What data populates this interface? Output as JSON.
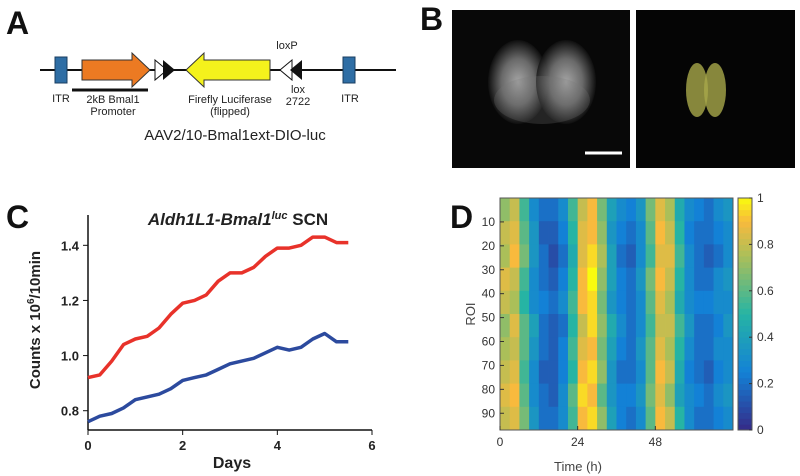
{
  "panels": [
    "A",
    "B",
    "C",
    "D"
  ],
  "diagram": {
    "itr_left": "ITR",
    "promoter": [
      "2kB Bmal1",
      "Promoter"
    ],
    "luciferase": [
      "Firefly Luciferase",
      "(flipped)"
    ],
    "loxp": "loxP",
    "lox2722": [
      "lox",
      "2722"
    ],
    "itr_right": "ITR",
    "construct": "AAV2/10-Bmal1ext-DIO-luc"
  },
  "chart_data": [
    {
      "type": "line",
      "title": [
        "Aldh1L1-Bmal1",
        "luc",
        " SCN"
      ],
      "x_label": "Days",
      "y_label": [
        "Counts x 10",
        "6",
        "/10min"
      ],
      "x": [
        0,
        0.25,
        0.5,
        0.75,
        1,
        1.25,
        1.5,
        1.75,
        2,
        2.25,
        2.5,
        2.75,
        3,
        3.25,
        3.5,
        3.75,
        4,
        4.25,
        4.5,
        4.75,
        5,
        5.25,
        5.5
      ],
      "series": [
        {
          "color": "#e8322a",
          "values": [
            0.92,
            0.93,
            0.98,
            1.04,
            1.06,
            1.07,
            1.1,
            1.15,
            1.19,
            1.2,
            1.22,
            1.27,
            1.3,
            1.3,
            1.32,
            1.36,
            1.39,
            1.39,
            1.4,
            1.43,
            1.43,
            1.41,
            1.41
          ]
        },
        {
          "color": "#2c4a9e",
          "values": [
            0.76,
            0.78,
            0.79,
            0.81,
            0.84,
            0.85,
            0.86,
            0.88,
            0.91,
            0.92,
            0.93,
            0.95,
            0.97,
            0.98,
            0.99,
            1.01,
            1.03,
            1.02,
            1.03,
            1.06,
            1.08,
            1.05,
            1.05
          ]
        }
      ],
      "xlim": [
        0,
        6
      ],
      "xticks": [
        0,
        2,
        4,
        6
      ],
      "ylim": [
        0.73,
        1.51
      ],
      "yticks": [
        0.8,
        {
          "value": 1.0,
          "label": "1.0"
        },
        1.2,
        1.4
      ]
    },
    {
      "type": "heatmap",
      "x_label": "Time (h)",
      "y_label": "ROI",
      "xlim": [
        0,
        72
      ],
      "xticks": [
        0,
        24,
        48
      ],
      "ylim": [
        0,
        97
      ],
      "yticks": [
        10,
        20,
        30,
        40,
        50,
        60,
        70,
        80,
        90
      ],
      "colormap": [
        [
          0,
          "#352a87"
        ],
        [
          0.25,
          "#1381d6"
        ],
        [
          0.5,
          "#26b4a4"
        ],
        [
          0.75,
          "#abbf59"
        ],
        [
          0.9,
          "#f8ba3d"
        ],
        [
          1,
          "#f9fb0e"
        ]
      ],
      "colorbar_lim": [
        0,
        1
      ],
      "colorbar_ticks": [
        0,
        0.2,
        0.4,
        0.6,
        0.8,
        1
      ],
      "values": [
        [
          0.7,
          0.8,
          0.55,
          0.3,
          0.2,
          0.2,
          0.3,
          0.55,
          0.8,
          0.9,
          0.65,
          0.4,
          0.3,
          0.25,
          0.35,
          0.65,
          0.85,
          0.75,
          0.45,
          0.3,
          0.25,
          0.2,
          0.3,
          0.35
        ],
        [
          0.8,
          0.85,
          0.6,
          0.35,
          0.15,
          0.15,
          0.25,
          0.5,
          0.85,
          0.9,
          0.7,
          0.35,
          0.25,
          0.2,
          0.3,
          0.6,
          0.9,
          0.8,
          0.5,
          0.25,
          0.2,
          0.2,
          0.25,
          0.3
        ],
        [
          0.75,
          0.9,
          0.65,
          0.35,
          0.2,
          0.1,
          0.2,
          0.45,
          0.85,
          0.95,
          0.75,
          0.4,
          0.2,
          0.15,
          0.3,
          0.55,
          0.85,
          0.85,
          0.55,
          0.3,
          0.2,
          0.15,
          0.2,
          0.3
        ],
        [
          0.85,
          0.8,
          0.55,
          0.3,
          0.2,
          0.15,
          0.25,
          0.5,
          0.9,
          1,
          0.7,
          0.4,
          0.25,
          0.2,
          0.35,
          0.65,
          0.9,
          0.8,
          0.5,
          0.3,
          0.2,
          0.2,
          0.3,
          0.35
        ],
        [
          0.8,
          0.75,
          0.5,
          0.3,
          0.25,
          0.2,
          0.3,
          0.55,
          0.9,
          0.95,
          0.65,
          0.35,
          0.25,
          0.2,
          0.3,
          0.6,
          0.85,
          0.75,
          0.45,
          0.3,
          0.25,
          0.25,
          0.3,
          0.3
        ],
        [
          0.7,
          0.85,
          0.6,
          0.4,
          0.2,
          0.15,
          0.2,
          0.5,
          0.8,
          0.95,
          0.7,
          0.45,
          0.3,
          0.2,
          0.3,
          0.55,
          0.8,
          0.8,
          0.55,
          0.35,
          0.2,
          0.2,
          0.25,
          0.35
        ],
        [
          0.75,
          0.8,
          0.6,
          0.35,
          0.2,
          0.15,
          0.25,
          0.55,
          0.85,
          0.9,
          0.65,
          0.4,
          0.25,
          0.2,
          0.35,
          0.6,
          0.85,
          0.75,
          0.5,
          0.3,
          0.2,
          0.2,
          0.3,
          0.3
        ],
        [
          0.8,
          0.85,
          0.55,
          0.3,
          0.15,
          0.15,
          0.25,
          0.5,
          0.9,
          0.95,
          0.7,
          0.35,
          0.2,
          0.2,
          0.3,
          0.6,
          0.9,
          0.8,
          0.45,
          0.25,
          0.2,
          0.15,
          0.25,
          0.3
        ],
        [
          0.85,
          0.9,
          0.6,
          0.3,
          0.2,
          0.15,
          0.3,
          0.6,
          0.95,
          0.9,
          0.6,
          0.35,
          0.25,
          0.25,
          0.35,
          0.65,
          0.85,
          0.7,
          0.4,
          0.3,
          0.25,
          0.2,
          0.3,
          0.35
        ],
        [
          0.8,
          0.85,
          0.65,
          0.35,
          0.2,
          0.2,
          0.3,
          0.55,
          0.9,
          0.95,
          0.7,
          0.4,
          0.25,
          0.2,
          0.3,
          0.6,
          0.9,
          0.8,
          0.5,
          0.3,
          0.2,
          0.2,
          0.25,
          0.3
        ]
      ]
    }
  ]
}
